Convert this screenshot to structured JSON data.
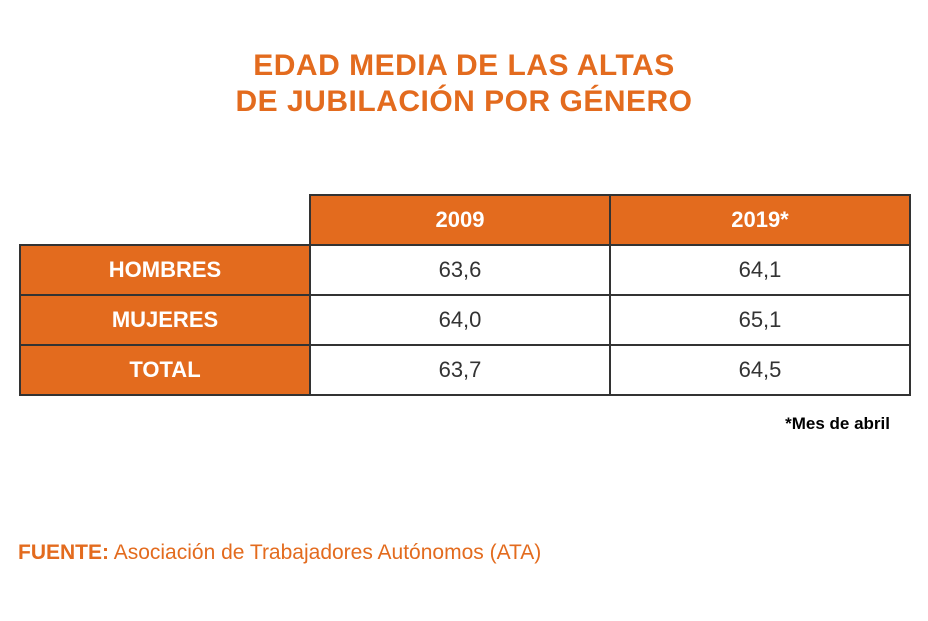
{
  "colors": {
    "orange": "#e36b1e",
    "white": "#ffffff",
    "text": "#333333",
    "black": "#000000"
  },
  "title": {
    "line1": "EDAD MEDIA DE LAS ALTAS",
    "line2": "DE JUBILACIÓN POR GÉNERO",
    "color": "#e36b1e",
    "fontsize": 30
  },
  "table": {
    "header_bg": "#e36b1e",
    "header_fg": "#ffffff",
    "rowhead_bg": "#e36b1e",
    "rowhead_fg": "#ffffff",
    "cell_bg": "#ffffff",
    "cell_fg": "#333333",
    "border_color": "#333333",
    "columns": [
      "2009",
      "2019*"
    ],
    "rows": [
      {
        "label": "HOMBRES",
        "values": [
          "63,6",
          "64,1"
        ]
      },
      {
        "label": "MUJERES",
        "values": [
          "64,0",
          "65,1"
        ]
      },
      {
        "label": "TOTAL",
        "values": [
          "63,7",
          "64,5"
        ]
      }
    ]
  },
  "footnote": {
    "text": "*Mes de abril",
    "fontsize": 17
  },
  "source": {
    "label": "FUENTE:",
    "text": "Asociación de Trabajadores Autónomos (ATA)",
    "color": "#e36b1e",
    "fontsize": 21
  }
}
